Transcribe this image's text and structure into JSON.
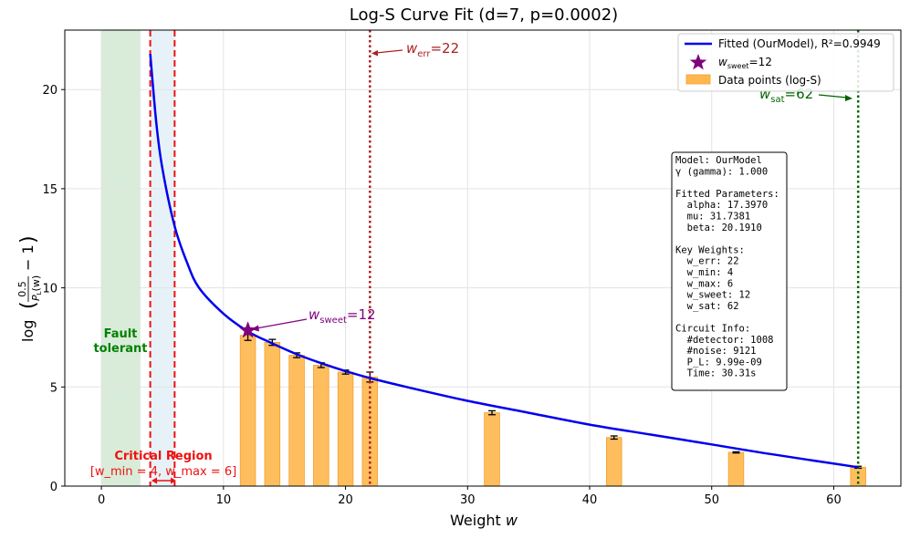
{
  "chart_data": {
    "type": "bar",
    "title": "Log-S Curve Fit (d=7, p=0.0002)",
    "xlabel_main": "Weight ",
    "xlabel_var": "w",
    "ylabel_prefix": "log",
    "ylabel_num": "0.5",
    "ylabel_den": "P",
    "ylabel_den_sub": "L",
    "ylabel_den_arg": "(w)",
    "ylabel_suffix": "− 1",
    "xlim": [
      -3,
      65.5
    ],
    "ylim": [
      0,
      23
    ],
    "xticks": [
      0,
      10,
      20,
      30,
      40,
      50,
      60
    ],
    "yticks": [
      0,
      5,
      10,
      15,
      20
    ],
    "grid": true,
    "bars": {
      "name": "Data points (log-S)",
      "color": "#ffb74d",
      "width": 1.25,
      "x": [
        12,
        14,
        16,
        18,
        20,
        22,
        32,
        42,
        52,
        62
      ],
      "values": [
        7.6,
        7.25,
        6.6,
        6.1,
        5.75,
        5.5,
        3.7,
        2.45,
        1.7,
        0.95
      ],
      "errors": [
        0.25,
        0.15,
        0.12,
        0.12,
        0.1,
        0.25,
        0.1,
        0.08,
        0.03,
        0.05
      ]
    },
    "fit": {
      "label": "Fitted (OurModel), R²=0.9949",
      "color": "#0000ee",
      "x": [
        4,
        4.5,
        5,
        6,
        7,
        8,
        10,
        12,
        14,
        16,
        18,
        20,
        22,
        25,
        30,
        35,
        40,
        45,
        50,
        55,
        62
      ],
      "y": [
        21.8,
        18.3,
        16.0,
        13.1,
        11.3,
        10.0,
        8.7,
        7.8,
        7.2,
        6.65,
        6.2,
        5.8,
        5.45,
        5.0,
        4.3,
        3.7,
        3.1,
        2.6,
        2.1,
        1.6,
        0.95
      ]
    },
    "regions": {
      "fault_tolerant": {
        "x0": 0,
        "x1": 3.2,
        "color": "#d9ecd9",
        "label_line1": "Fault",
        "label_line2": "tolerant",
        "label_color": "#008000"
      },
      "critical": {
        "x0": 4,
        "x1": 6,
        "color": "#e6f2f7",
        "line_color": "#ee1111",
        "title": "Critical Region",
        "detail": "[w_min = 4, w_max = 6]"
      }
    },
    "vlines": [
      {
        "name": "w_err",
        "x": 22,
        "color": "#aa2222"
      },
      {
        "name": "w_sat",
        "x": 62,
        "color": "#006400"
      }
    ],
    "annotations": {
      "w_err": {
        "sym": "w",
        "sub": "err",
        "tail": "=22",
        "color": "#aa2222"
      },
      "w_sat": {
        "sym": "w",
        "sub": "sat",
        "tail": "=62",
        "color": "#006400"
      },
      "w_sweet": {
        "sym": "w",
        "sub": "sweet",
        "tail": "=12",
        "color": "#800080",
        "x": 12,
        "y": 7.85
      }
    },
    "legend": {
      "placement": "top-right",
      "fit_label": "Fitted (OurModel), R²=0.9949",
      "star_sym": "w",
      "star_sub": "sweet",
      "star_tail": "=12",
      "bar_label": "Data points (log-S)"
    },
    "info_box": [
      "Model: OurModel",
      "γ (gamma): 1.000",
      "",
      "Fitted Parameters:",
      "  alpha: 17.3970",
      "  mu: 31.7381",
      "  beta: 20.1910",
      "",
      "Key Weights:",
      "  w_err: 22",
      "  w_min: 4",
      "  w_max: 6",
      "  w_sweet: 12",
      "  w_sat: 62",
      "",
      "Circuit Info:",
      "  #detector: 1008",
      "  #noise: 9121",
      "  P_L: 9.99e-09",
      "  Time: 30.31s"
    ]
  }
}
